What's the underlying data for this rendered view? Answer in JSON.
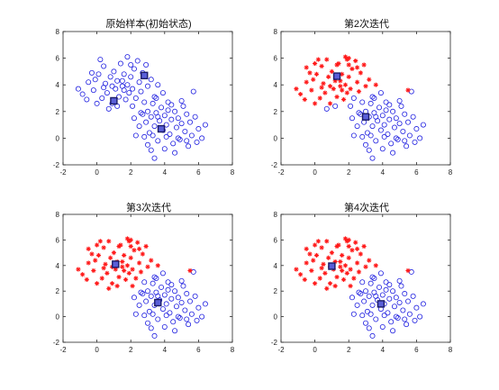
{
  "figure": {
    "background": "#ffffff"
  },
  "style": {
    "blue": "#1f1fe0",
    "red": "#ff1a1a",
    "center_fill": "#5a5fd8",
    "center_stroke": "#1a1a66",
    "axis": "#262626"
  },
  "chart_data": [
    {
      "type": "scatter",
      "title": "原始样本(初始状态)",
      "xlim": [
        -2,
        8
      ],
      "ylim": [
        -2,
        8
      ],
      "xticks": [
        "-2",
        "0",
        "2",
        "4",
        "6",
        "8"
      ],
      "yticks": [
        "-2",
        "0",
        "2",
        "4",
        "6",
        "8"
      ],
      "grid": false,
      "iteration": 0,
      "centers": [
        [
          2.8,
          4.7
        ],
        [
          1.0,
          2.8
        ],
        [
          3.8,
          0.7
        ]
      ]
    },
    {
      "type": "scatter",
      "title": "第2次迭代",
      "xlim": [
        -2,
        8
      ],
      "ylim": [
        -2,
        8
      ],
      "xticks": [
        "-2",
        "0",
        "2",
        "4",
        "6",
        "8"
      ],
      "yticks": [
        "-2",
        "0",
        "2",
        "4",
        "6",
        "8"
      ],
      "grid": false,
      "iteration": 2,
      "centers": [
        [
          1.3,
          4.65
        ],
        [
          3.0,
          1.6
        ]
      ]
    },
    {
      "type": "scatter",
      "title": "第3次迭代",
      "xlim": [
        -2,
        8
      ],
      "ylim": [
        -2,
        8
      ],
      "xticks": [
        "-2",
        "0",
        "2",
        "4",
        "6",
        "8"
      ],
      "yticks": [
        "-2",
        "0",
        "2",
        "4",
        "6",
        "8"
      ],
      "grid": false,
      "iteration": 3,
      "centers": [
        [
          1.1,
          4.1
        ],
        [
          3.6,
          1.1
        ]
      ]
    },
    {
      "type": "scatter",
      "title": "第4次迭代",
      "xlim": [
        -2,
        8
      ],
      "ylim": [
        -2,
        8
      ],
      "xticks": [
        "-2",
        "0",
        "2",
        "4",
        "6",
        "8"
      ],
      "yticks": [
        "-2",
        "0",
        "2",
        "4",
        "6",
        "8"
      ],
      "grid": false,
      "iteration": 4,
      "centers": [
        [
          1.0,
          3.95
        ],
        [
          3.9,
          1.0
        ]
      ]
    }
  ],
  "samples": [
    [
      -0.85,
      3.3
    ],
    [
      -0.5,
      4.2
    ],
    [
      -0.2,
      3.6
    ],
    [
      0.1,
      4.8
    ],
    [
      0.3,
      3.0
    ],
    [
      0.4,
      5.4
    ],
    [
      0.5,
      4.1
    ],
    [
      0.6,
      3.4
    ],
    [
      0.8,
      4.6
    ],
    [
      0.9,
      2.6
    ],
    [
      1.0,
      5.0
    ],
    [
      1.1,
      3.7
    ],
    [
      1.2,
      4.3
    ],
    [
      1.3,
      3.1
    ],
    [
      1.4,
      5.6
    ],
    [
      1.5,
      3.9
    ],
    [
      1.6,
      4.8
    ],
    [
      1.7,
      2.9
    ],
    [
      1.8,
      4.0
    ],
    [
      1.9,
      3.4
    ],
    [
      2.0,
      4.6
    ],
    [
      2.1,
      3.7
    ],
    [
      2.2,
      5.2
    ],
    [
      2.3,
      3.0
    ],
    [
      2.5,
      4.2
    ],
    [
      2.6,
      3.5
    ],
    [
      2.7,
      4.9
    ],
    [
      2.8,
      2.7
    ],
    [
      3.0,
      3.9
    ],
    [
      3.2,
      4.4
    ],
    [
      0.0,
      2.6
    ],
    [
      -0.3,
      4.9
    ],
    [
      0.2,
      5.9
    ],
    [
      1.8,
      6.1
    ],
    [
      2.4,
      5.8
    ],
    [
      2.9,
      5.5
    ],
    [
      -1.1,
      3.7
    ],
    [
      -0.6,
      2.9
    ],
    [
      3.4,
      3.1
    ],
    [
      0.7,
      2.2
    ],
    [
      1.2,
      2.4
    ],
    [
      2.6,
      1.9
    ],
    [
      3.6,
      4.0
    ],
    [
      1.5,
      4.3
    ],
    [
      0.9,
      3.9
    ],
    [
      2.1,
      2.4
    ],
    [
      -0.1,
      4.4
    ],
    [
      1.6,
      3.6
    ],
    [
      2.0,
      5.5
    ],
    [
      0.4,
      3.8
    ],
    [
      2.7,
      1.8
    ],
    [
      2.9,
      1.2
    ],
    [
      3.0,
      2.0
    ],
    [
      3.1,
      0.4
    ],
    [
      3.2,
      1.6
    ],
    [
      3.3,
      2.6
    ],
    [
      3.4,
      0.9
    ],
    [
      3.5,
      1.9
    ],
    [
      3.6,
      -0.2
    ],
    [
      3.7,
      1.3
    ],
    [
      3.8,
      2.3
    ],
    [
      3.9,
      0.6
    ],
    [
      4.0,
      1.7
    ],
    [
      4.1,
      1.0
    ],
    [
      4.2,
      2.1
    ],
    [
      4.3,
      0.3
    ],
    [
      4.4,
      1.4
    ],
    [
      4.5,
      -0.4
    ],
    [
      4.6,
      2.0
    ],
    [
      4.7,
      0.8
    ],
    [
      4.8,
      1.5
    ],
    [
      4.9,
      -0.1
    ],
    [
      5.0,
      1.1
    ],
    [
      5.1,
      2.4
    ],
    [
      5.2,
      0.5
    ],
    [
      5.3,
      1.8
    ],
    [
      5.4,
      -0.6
    ],
    [
      5.5,
      1.2
    ],
    [
      5.6,
      0.2
    ],
    [
      5.8,
      1.6
    ],
    [
      6.0,
      0.7
    ],
    [
      6.2,
      0.0
    ],
    [
      6.4,
      1.0
    ],
    [
      2.5,
      0.9
    ],
    [
      2.8,
      0.1
    ],
    [
      3.5,
      3.0
    ],
    [
      4.0,
      -0.8
    ],
    [
      4.2,
      2.7
    ],
    [
      3.0,
      -0.5
    ],
    [
      5.7,
      3.5
    ],
    [
      3.4,
      -1.5
    ],
    [
      2.3,
      0.2
    ],
    [
      4.6,
      -1.1
    ],
    [
      5.3,
      -0.2
    ],
    [
      3.9,
      3.4
    ],
    [
      4.4,
      2.5
    ],
    [
      2.2,
      1.5
    ],
    [
      3.3,
      0.2
    ],
    [
      4.8,
      0.0
    ],
    [
      5.0,
      2.8
    ],
    [
      3.6,
      1.6
    ],
    [
      4.1,
      0.1
    ],
    [
      3.2,
      -0.9
    ],
    [
      5.9,
      -0.3
    ]
  ],
  "red_markers": [
    [
      0.0,
      5.6
    ],
    [
      0.7,
      5.9
    ],
    [
      1.3,
      5.5
    ],
    [
      2.0,
      6.0
    ],
    [
      -0.5,
      5.3
    ],
    [
      2.5,
      5.3
    ],
    [
      5.5,
      3.6
    ],
    [
      1.9,
      5.9
    ]
  ]
}
